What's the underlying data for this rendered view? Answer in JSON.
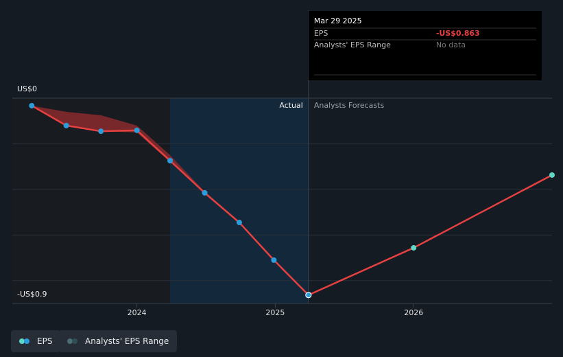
{
  "chart_data": {
    "type": "line",
    "xlim": [
      2023.1,
      2027.0
    ],
    "xticks": [
      2024,
      2025,
      2026
    ],
    "ylim": [
      -0.9,
      0
    ],
    "yticks": [
      {
        "value": 0,
        "label": "US$0"
      },
      {
        "value": -0.9,
        "label": "-US$0.9"
      }
    ],
    "ygrid": [
      -0.2,
      -0.4,
      -0.6,
      -0.8
    ],
    "highlight_xlim": [
      2024.24,
      2025.24
    ],
    "divider_x": 2025.24,
    "region_labels": [
      "Actual",
      "Analysts Forecasts"
    ],
    "series": [
      {
        "name": "EPS",
        "color": "#e64141",
        "marker_color": "#2d9cdb",
        "forecast_marker_color": "#5fd6c6",
        "x": [
          2023.24,
          2023.49,
          2023.74,
          2024.0,
          2024.24,
          2024.49,
          2024.74,
          2024.99,
          2025.24,
          2026.0,
          2027.0
        ],
        "values": [
          -0.033,
          -0.12,
          -0.145,
          -0.141,
          -0.274,
          -0.415,
          -0.545,
          -0.71,
          -0.863,
          -0.656,
          -0.337
        ]
      },
      {
        "name": "Analysts' EPS Range",
        "color": "#8a2a2e",
        "marker_color": "#4a6f72",
        "x": [
          2023.24,
          2023.49,
          2023.74,
          2024.0,
          2024.24,
          2024.49,
          2024.74
        ],
        "high": [
          -0.033,
          -0.06,
          -0.075,
          -0.12,
          -0.25,
          -0.41,
          -0.54
        ],
        "low": [
          -0.033,
          -0.12,
          -0.145,
          -0.15,
          -0.28,
          -0.42,
          -0.55
        ]
      }
    ],
    "tooltip": {
      "date": "Mar 29 2025",
      "rows": [
        [
          "EPS",
          "-US$0.863"
        ],
        [
          "Analysts' EPS Range",
          "No data"
        ]
      ]
    }
  }
}
